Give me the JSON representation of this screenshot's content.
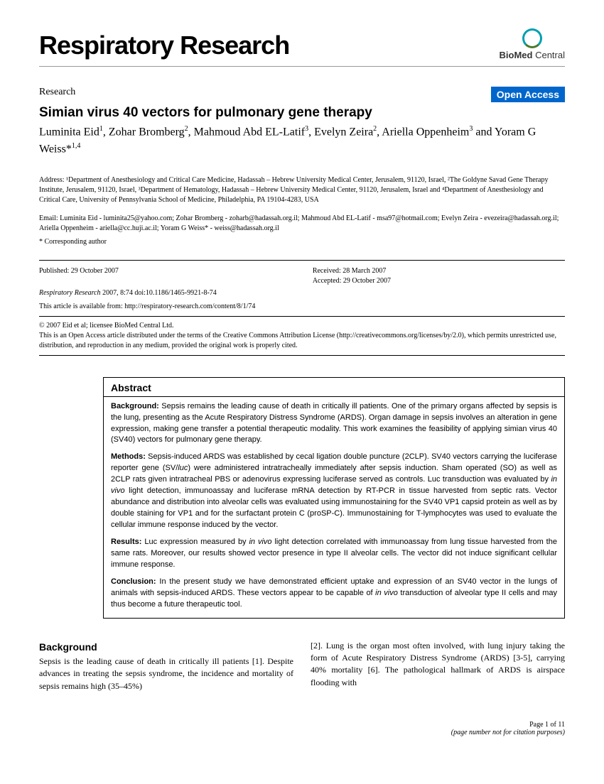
{
  "journal": {
    "title": "Respiratory Research",
    "publisher_logo_text": "BioMed",
    "publisher_logo_suffix": " Central"
  },
  "article": {
    "type": "Research",
    "open_access_label": "Open Access",
    "title": "Simian virus 40 vectors for pulmonary gene therapy",
    "authors_html": "Luminita Eid<sup>1</sup>, Zohar Bromberg<sup>2</sup>, Mahmoud Abd EL-Latif<sup>3</sup>, Evelyn Zeira<sup>2</sup>, Ariella Oppenheim<sup>3</sup> and Yoram G Weiss*<sup>1,4</sup>"
  },
  "address": "Address: ¹Department of Anesthesiology and Critical Care Medicine, Hadassah – Hebrew University Medical Center, Jerusalem, 91120, Israel, ²The Goldyne Savad Gene Therapy Institute, Jerusalem, 91120, Israel, ³Department of Hematology, Hadassah – Hebrew University Medical Center, 91120, Jerusalem, Israel and ⁴Department of Anesthesiology and Critical Care, University of Pennsylvania School of Medicine, Philadelphia, PA 19104-4283, USA",
  "emails": "Email: Luminita Eid - luminita25@yahoo.com; Zohar Bromberg - zoharb@hadassah.org.il; Mahmoud Abd EL-Latif - msa97@hotmail.com; Evelyn Zeira - evezeira@hadassah.org.il; Ariella Oppenheim - ariella@cc.huji.ac.il; Yoram G Weiss* - weiss@hadassah.org.il",
  "corresponding": "* Corresponding author",
  "publication": {
    "published": "Published: 29 October 2007",
    "received": "Received: 28 March 2007",
    "accepted": "Accepted: 29 October 2007",
    "citation_journal": "Respiratory Research",
    "citation_rest": " 2007, 8:74   doi:10.1186/1465-9921-8-74",
    "available_from": "This article is available from: http://respiratory-research.com/content/8/1/74"
  },
  "license": {
    "line1": "© 2007 Eid et al; licensee BioMed Central Ltd.",
    "line2": "This is an Open Access article distributed under the terms of the Creative Commons Attribution License (http://creativecommons.org/licenses/by/2.0), which permits unrestricted use, distribution, and reproduction in any medium, provided the original work is properly cited."
  },
  "abstract": {
    "heading": "Abstract",
    "background_label": "Background:",
    "background_text": " Sepsis remains the leading cause of death in critically ill patients. One of the primary organs affected by sepsis is the lung, presenting as the Acute Respiratory Distress Syndrome (ARDS). Organ damage in sepsis involves an alteration in gene expression, making gene transfer a potential therapeutic modality. This work examines the feasibility of applying simian virus 40 (SV40) vectors for pulmonary gene therapy.",
    "methods_label": "Methods:",
    "methods_text": " Sepsis-induced ARDS was established by cecal ligation double puncture (2CLP). SV40 vectors carrying the luciferase reporter gene (SV/luc) were administered intratracheally immediately after sepsis induction. Sham operated (SO) as well as 2CLP rats given intratracheal PBS or adenovirus expressing luciferase served as controls. Luc transduction was evaluated by in vivo light detection, immunoassay and luciferase mRNA detection by RT-PCR in tissue harvested from septic rats. Vector abundance and distribution into alveolar cells was evaluated using immunostaining for the SV40 VP1 capsid protein as well as by double staining for VP1 and for the surfactant protein C (proSP-C). Immunostaining for T-lymphocytes was used to evaluate the cellular immune response induced by the vector.",
    "results_label": "Results:",
    "results_text": " Luc expression measured by in vivo light detection correlated with immunoassay from lung tissue harvested from the same rats. Moreover, our results showed vector presence in type II alveolar cells. The vector did not induce significant cellular immune response.",
    "conclusion_label": "Conclusion:",
    "conclusion_text": " In the present study we have demonstrated efficient uptake and expression of an SV40 vector in the lungs of animals with sepsis-induced ARDS. These vectors appear to be capable of in vivo transduction of alveolar type II cells and may thus become a future therapeutic tool."
  },
  "body": {
    "background_heading": "Background",
    "col1_text": "Sepsis is the leading cause of death in critically ill patients [1]. Despite advances in treating the sepsis syndrome, the incidence and mortality of sepsis remains high (35–45%)",
    "col2_text": "[2]. Lung is the organ most often involved, with lung injury taking the form of Acute Respiratory Distress Syndrome (ARDS) [3-5], carrying 40% mortality [6]. The pathological hallmark of ARDS is airspace flooding with"
  },
  "footer": {
    "page": "Page 1 of 11",
    "note": "(page number not for citation purposes)"
  },
  "colors": {
    "open_access_bg": "#0066cc",
    "logo_teal": "#00a0b0",
    "logo_green": "#4a7a2a"
  }
}
